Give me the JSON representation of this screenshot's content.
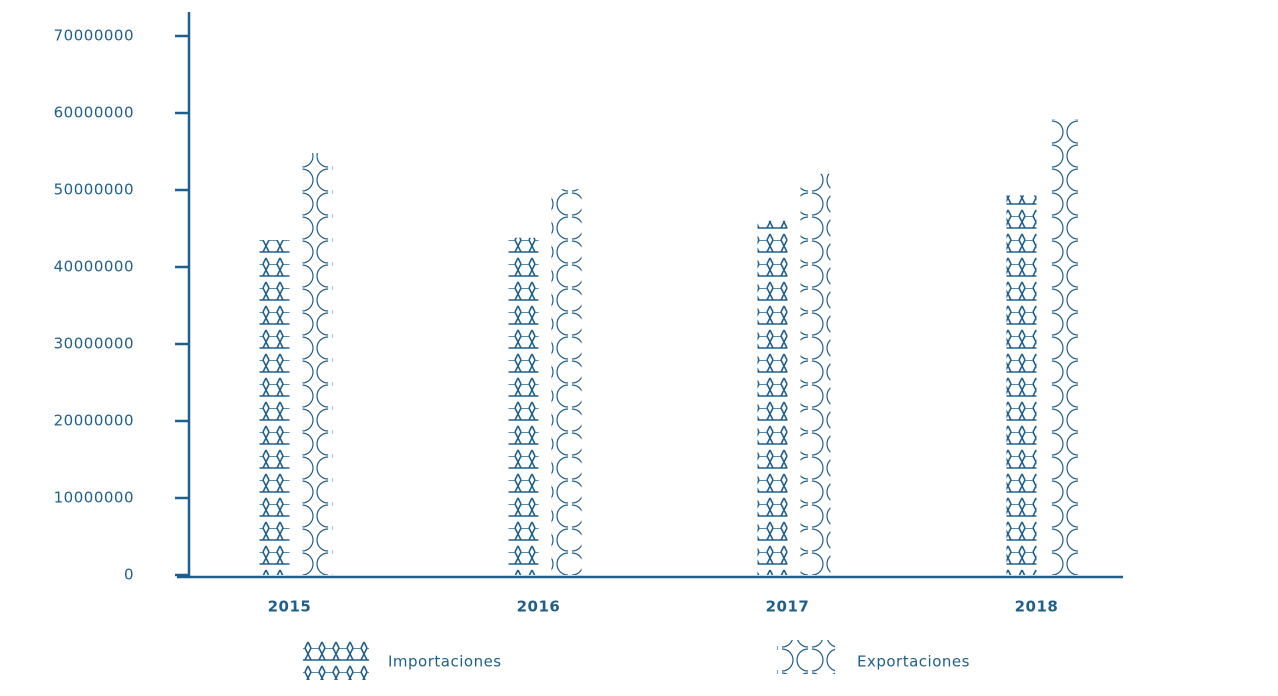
{
  "chart_data": {
    "type": "bar",
    "categories": [
      "2015",
      "2016",
      "2017",
      "2018"
    ],
    "series": [
      {
        "name": "Importaciones",
        "color": "#1f5f8b",
        "values": [
          43500000,
          43800000,
          46000000,
          49300000
        ]
      },
      {
        "name": "Exportaciones",
        "color": "#1f5f8b",
        "values": [
          54800000,
          50100000,
          52100000,
          59200000
        ]
      }
    ],
    "ylim": [
      0,
      70000000
    ],
    "yticks": [
      0,
      10000000,
      20000000,
      30000000,
      40000000,
      50000000,
      60000000,
      70000000
    ],
    "grid": false
  }
}
